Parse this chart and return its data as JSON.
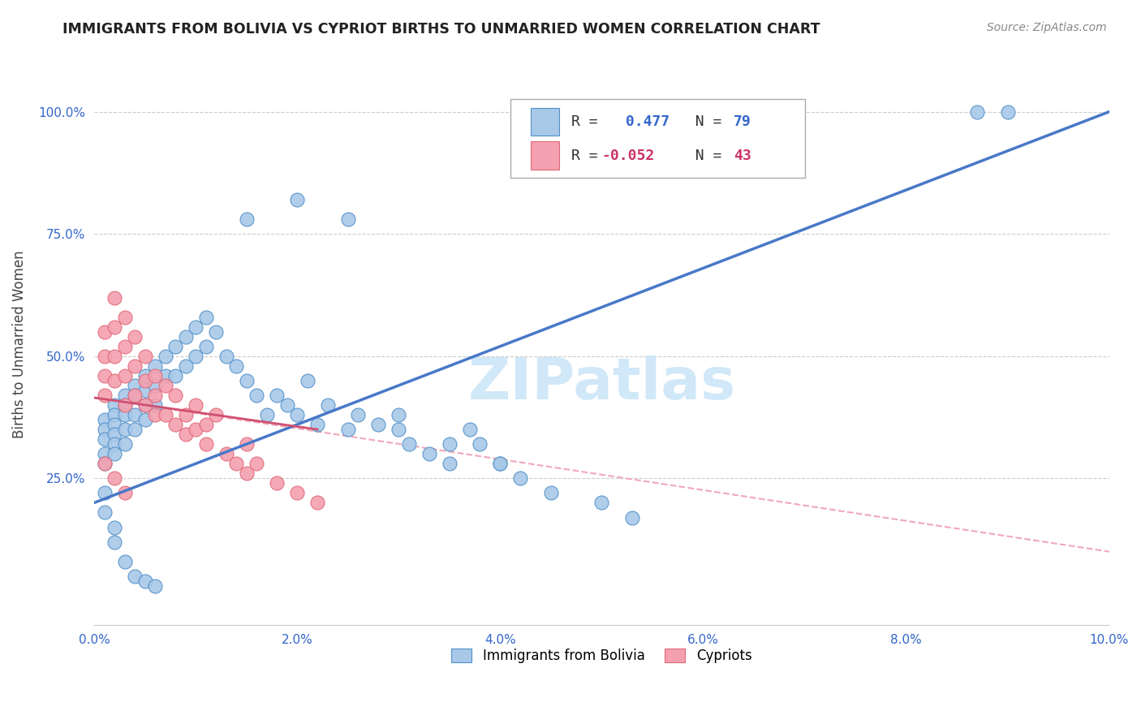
{
  "title": "IMMIGRANTS FROM BOLIVIA VS CYPRIOT BIRTHS TO UNMARRIED WOMEN CORRELATION CHART",
  "source": "Source: ZipAtlas.com",
  "ylabel": "Births to Unmarried Women",
  "legend_label1": "Immigrants from Bolivia",
  "legend_label2": "Cypriots",
  "r1_text": "R =  0.477   N = 79",
  "r2_text": "R = -0.052   N = 43",
  "r1_val": "0.477",
  "r2_val": "-0.052",
  "n1_val": "79",
  "n2_val": "43",
  "xlim": [
    0.0,
    0.1
  ],
  "ylim": [
    -0.05,
    1.1
  ],
  "xtick_labels": [
    "0.0%",
    "",
    "2.0%",
    "",
    "4.0%",
    "",
    "6.0%",
    "",
    "8.0%",
    "",
    "10.0%"
  ],
  "xtick_vals": [
    0.0,
    0.01,
    0.02,
    0.03,
    0.04,
    0.05,
    0.06,
    0.07,
    0.08,
    0.09,
    0.1
  ],
  "ytick_labels": [
    "25.0%",
    "50.0%",
    "75.0%",
    "100.0%"
  ],
  "ytick_vals": [
    0.25,
    0.5,
    0.75,
    1.0
  ],
  "color_blue": "#a8c8e8",
  "color_pink": "#f4a0b0",
  "edge_blue": "#5090c8",
  "edge_pink": "#e06878",
  "line_blue": "#4878c8",
  "line_pink_solid": "#d05070",
  "line_pink_dashed": "#f0a8b8",
  "watermark_color": "#d0e8f8",
  "background": "#ffffff",
  "grid_color": "#cccccc",
  "bolivia_x": [
    0.001,
    0.001,
    0.001,
    0.001,
    0.001,
    0.002,
    0.002,
    0.002,
    0.002,
    0.002,
    0.002,
    0.003,
    0.003,
    0.003,
    0.003,
    0.003,
    0.004,
    0.004,
    0.004,
    0.004,
    0.005,
    0.005,
    0.005,
    0.005,
    0.006,
    0.006,
    0.006,
    0.007,
    0.007,
    0.008,
    0.008,
    0.009,
    0.009,
    0.01,
    0.01,
    0.011,
    0.011,
    0.012,
    0.013,
    0.014,
    0.015,
    0.016,
    0.017,
    0.018,
    0.019,
    0.02,
    0.021,
    0.022,
    0.023,
    0.025,
    0.026,
    0.028,
    0.03,
    0.031,
    0.033,
    0.035,
    0.037,
    0.038,
    0.04,
    0.042,
    0.045,
    0.05,
    0.053,
    0.015,
    0.02,
    0.025,
    0.03,
    0.035,
    0.04,
    0.001,
    0.001,
    0.002,
    0.002,
    0.003,
    0.004,
    0.005,
    0.006,
    0.087,
    0.09
  ],
  "bolivia_y": [
    0.37,
    0.35,
    0.33,
    0.3,
    0.28,
    0.4,
    0.38,
    0.36,
    0.34,
    0.32,
    0.3,
    0.42,
    0.4,
    0.38,
    0.35,
    0.32,
    0.44,
    0.42,
    0.38,
    0.35,
    0.46,
    0.43,
    0.4,
    0.37,
    0.48,
    0.44,
    0.4,
    0.5,
    0.46,
    0.52,
    0.46,
    0.54,
    0.48,
    0.56,
    0.5,
    0.58,
    0.52,
    0.55,
    0.5,
    0.48,
    0.45,
    0.42,
    0.38,
    0.42,
    0.4,
    0.38,
    0.45,
    0.36,
    0.4,
    0.35,
    0.38,
    0.36,
    0.38,
    0.32,
    0.3,
    0.28,
    0.35,
    0.32,
    0.28,
    0.25,
    0.22,
    0.2,
    0.17,
    0.78,
    0.82,
    0.78,
    0.35,
    0.32,
    0.28,
    0.22,
    0.18,
    0.15,
    0.12,
    0.08,
    0.05,
    0.04,
    0.03,
    1.0,
    1.0
  ],
  "cyprus_x": [
    0.001,
    0.001,
    0.001,
    0.001,
    0.002,
    0.002,
    0.002,
    0.002,
    0.003,
    0.003,
    0.003,
    0.003,
    0.004,
    0.004,
    0.004,
    0.005,
    0.005,
    0.005,
    0.006,
    0.006,
    0.006,
    0.007,
    0.007,
    0.008,
    0.008,
    0.009,
    0.009,
    0.01,
    0.01,
    0.011,
    0.011,
    0.012,
    0.013,
    0.014,
    0.015,
    0.015,
    0.016,
    0.018,
    0.02,
    0.022,
    0.001,
    0.002,
    0.003
  ],
  "cyprus_y": [
    0.55,
    0.5,
    0.46,
    0.42,
    0.62,
    0.56,
    0.5,
    0.45,
    0.58,
    0.52,
    0.46,
    0.4,
    0.54,
    0.48,
    0.42,
    0.5,
    0.45,
    0.4,
    0.46,
    0.42,
    0.38,
    0.44,
    0.38,
    0.42,
    0.36,
    0.38,
    0.34,
    0.4,
    0.35,
    0.36,
    0.32,
    0.38,
    0.3,
    0.28,
    0.32,
    0.26,
    0.28,
    0.24,
    0.22,
    0.2,
    0.28,
    0.25,
    0.22
  ],
  "line_blue_x0": 0.0,
  "line_blue_y0": 0.2,
  "line_blue_x1": 0.1,
  "line_blue_y1": 1.0,
  "line_pink_solid_x0": 0.0,
  "line_pink_solid_y0": 0.415,
  "line_pink_solid_x1": 0.022,
  "line_pink_solid_y1": 0.35,
  "line_pink_dash_x0": 0.0,
  "line_pink_dash_y0": 0.415,
  "line_pink_dash_x1": 0.1,
  "line_pink_dash_y1": 0.1
}
